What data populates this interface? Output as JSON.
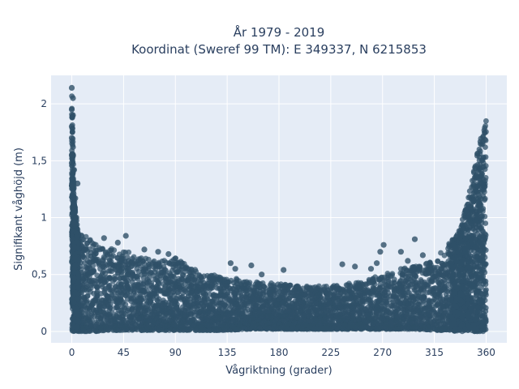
{
  "chart_data": {
    "type": "scatter",
    "title": "År 1979 - 2019",
    "subtitle": "Koordinat (Sweref 99 TM): E 349337, N 6215853",
    "xlabel": "Vågriktning (grader)",
    "ylabel": "Signifikant våghöjd (m)",
    "xlim": [
      -18,
      378
    ],
    "ylim": [
      -0.1,
      2.25
    ],
    "x_ticks": [
      0,
      45,
      90,
      135,
      180,
      225,
      270,
      315,
      360
    ],
    "x_tick_labels": [
      "0",
      "45",
      "90",
      "135",
      "180",
      "225",
      "270",
      "315",
      "360"
    ],
    "y_ticks": [
      0,
      0.5,
      1,
      1.5,
      2
    ],
    "y_tick_labels": [
      "0",
      "0,5",
      "1",
      "1,5",
      "2"
    ],
    "grid": true,
    "legend": "none",
    "colors": {
      "marker": "#2f5068",
      "plot_background": "#e5ecf6",
      "grid": "#ffffff",
      "text": "#2a3f5f"
    },
    "envelope": {
      "x": [
        0,
        2,
        5,
        10,
        20,
        30,
        45,
        60,
        75,
        90,
        105,
        120,
        135,
        150,
        165,
        180,
        195,
        210,
        225,
        240,
        255,
        270,
        285,
        300,
        315,
        325,
        335,
        340,
        345,
        350,
        355,
        360
      ],
      "upper": [
        2.14,
        1.2,
        0.9,
        0.85,
        0.78,
        0.75,
        0.72,
        0.65,
        0.62,
        0.65,
        0.55,
        0.5,
        0.48,
        0.45,
        0.43,
        0.42,
        0.4,
        0.4,
        0.4,
        0.42,
        0.45,
        0.5,
        0.55,
        0.58,
        0.62,
        0.75,
        0.85,
        1.0,
        1.2,
        1.45,
        1.7,
        1.87
      ],
      "lower": [
        0,
        0,
        0,
        0,
        0,
        0.01,
        0.01,
        0.01,
        0.01,
        0.01,
        0.01,
        0.01,
        0.01,
        0.02,
        0.02,
        0.02,
        0.02,
        0.02,
        0.02,
        0.02,
        0.02,
        0.02,
        0.02,
        0.02,
        0.01,
        0.01,
        0.01,
        0.01,
        0.01,
        0.0,
        0.0,
        0.0
      ]
    },
    "outliers": [
      {
        "x": 0,
        "y": 2.14
      },
      {
        "x": 1,
        "y": 2.05
      },
      {
        "x": 0,
        "y": 1.95
      },
      {
        "x": 1,
        "y": 1.9
      },
      {
        "x": 0,
        "y": 1.8
      },
      {
        "x": 0,
        "y": 1.7
      },
      {
        "x": 1,
        "y": 1.62
      },
      {
        "x": 0,
        "y": 1.55
      },
      {
        "x": 0,
        "y": 1.48
      },
      {
        "x": 2,
        "y": 1.42
      },
      {
        "x": 5,
        "y": 1.3
      },
      {
        "x": 0,
        "y": 1.28
      },
      {
        "x": 3,
        "y": 1.17
      },
      {
        "x": 1,
        "y": 1.1
      },
      {
        "x": 4,
        "y": 1.0
      },
      {
        "x": 2,
        "y": 0.95
      },
      {
        "x": 47,
        "y": 0.84
      },
      {
        "x": 28,
        "y": 0.82
      },
      {
        "x": 40,
        "y": 0.78
      },
      {
        "x": 63,
        "y": 0.72
      },
      {
        "x": 75,
        "y": 0.7
      },
      {
        "x": 84,
        "y": 0.68
      },
      {
        "x": 138,
        "y": 0.6
      },
      {
        "x": 142,
        "y": 0.55
      },
      {
        "x": 156,
        "y": 0.58
      },
      {
        "x": 184,
        "y": 0.54
      },
      {
        "x": 165,
        "y": 0.5
      },
      {
        "x": 235,
        "y": 0.59
      },
      {
        "x": 246,
        "y": 0.57
      },
      {
        "x": 265,
        "y": 0.6
      },
      {
        "x": 271,
        "y": 0.76
      },
      {
        "x": 268,
        "y": 0.7
      },
      {
        "x": 286,
        "y": 0.7
      },
      {
        "x": 298,
        "y": 0.81
      },
      {
        "x": 305,
        "y": 0.67
      },
      {
        "x": 292,
        "y": 0.62
      },
      {
        "x": 260,
        "y": 0.55
      }
    ]
  }
}
